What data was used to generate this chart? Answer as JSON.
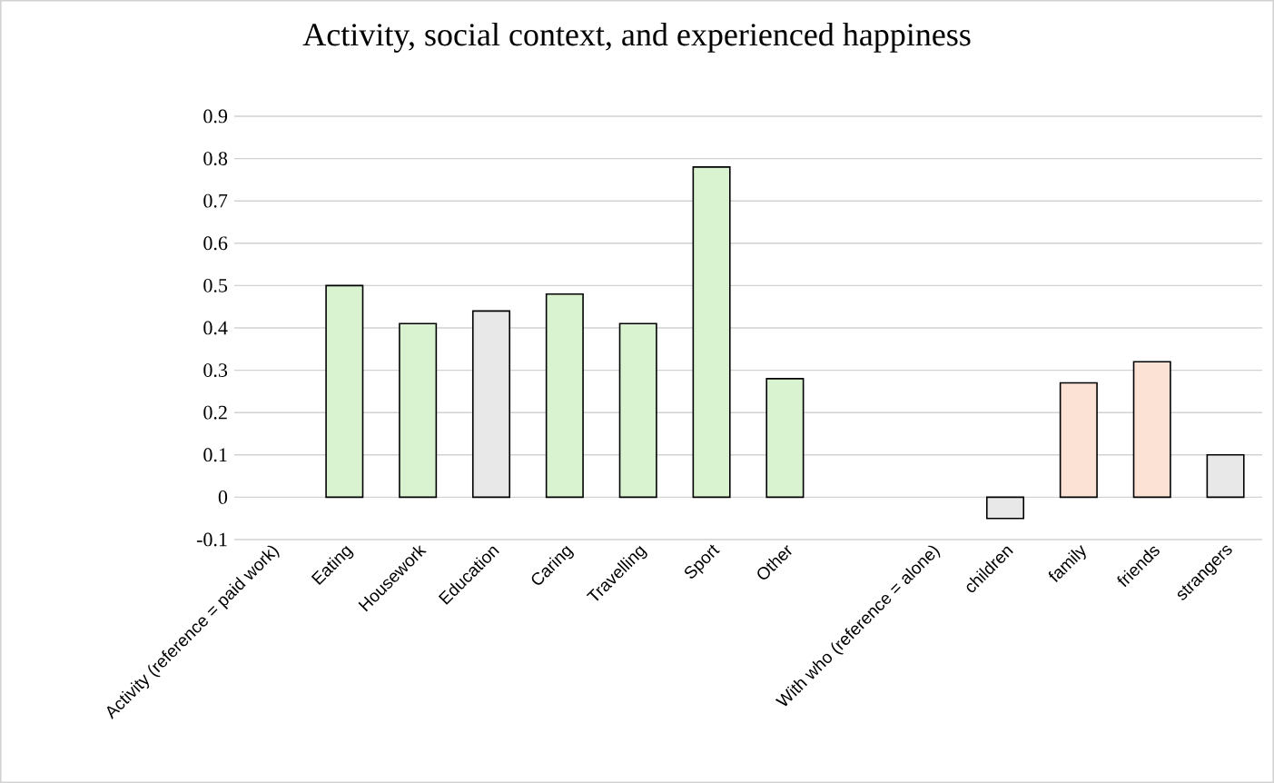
{
  "chart_data": {
    "type": "bar",
    "title": "Activity, social context, and experienced happiness",
    "categories": [
      "Activity (reference = paid work)",
      "Eating",
      "Housework",
      "Education",
      "Caring",
      "Travelling",
      "Sport",
      "Other",
      null,
      "With who (reference = alone)",
      "children",
      "family",
      "friends",
      "strangers"
    ],
    "values": [
      null,
      0.5,
      0.41,
      0.44,
      0.48,
      0.41,
      0.78,
      0.28,
      null,
      null,
      -0.05,
      0.27,
      0.32,
      0.1
    ],
    "colors": [
      "#d9f2d0",
      "#d9f2d0",
      "#d9f2d0",
      "#e8e8e8",
      "#d9f2d0",
      "#d9f2d0",
      "#d9f2d0",
      "#d9f2d0",
      "#e8e8e8",
      "#e8e8e8",
      "#e8e8e8",
      "#fbe2d5",
      "#fbe2d5",
      "#e8e8e8"
    ],
    "ylim": [
      -0.1,
      0.9
    ],
    "yticks": [
      -0.1,
      0,
      0.1,
      0.2,
      0.3,
      0.4,
      0.5,
      0.6,
      0.7,
      0.8,
      0.9
    ],
    "grid": "y"
  }
}
